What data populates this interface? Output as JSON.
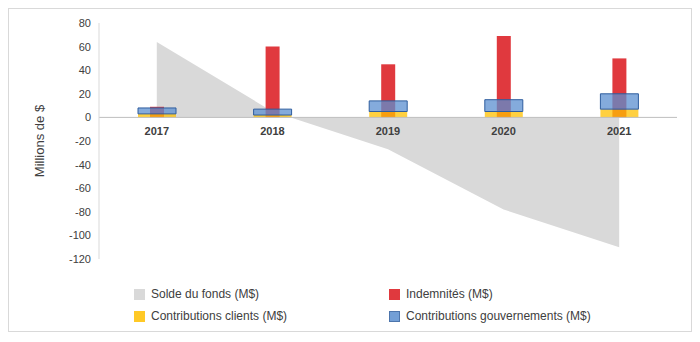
{
  "chart_data": {
    "type": "bar",
    "y_label": "Millions de $",
    "categories": [
      "2017",
      "2018",
      "2019",
      "2020",
      "2021"
    ],
    "ylim": [
      -120,
      80
    ],
    "yticks": [
      -120,
      -100,
      -80,
      -60,
      -40,
      -20,
      0,
      20,
      40,
      60,
      80
    ],
    "grid": false,
    "legend": "bottom",
    "series": [
      {
        "name": "Solde du fonds (M$)",
        "type": "area",
        "color": "#d9d9d9",
        "values": [
          64,
          5,
          -27,
          -78,
          -110
        ]
      },
      {
        "name": "Indemnités (M$)",
        "type": "bar",
        "color": "#e0393e",
        "values": [
          9,
          60,
          45,
          69,
          50
        ]
      },
      {
        "name": "Contributions clients (M$)",
        "type": "stacked_bar",
        "color": "#ffc000",
        "values": [
          3,
          2,
          5,
          5,
          7
        ]
      },
      {
        "name": "Contributions gouvernements (M$)",
        "type": "stacked_bar",
        "color": "#5b8fd0",
        "values": [
          5,
          5,
          9,
          10,
          13
        ]
      }
    ]
  }
}
